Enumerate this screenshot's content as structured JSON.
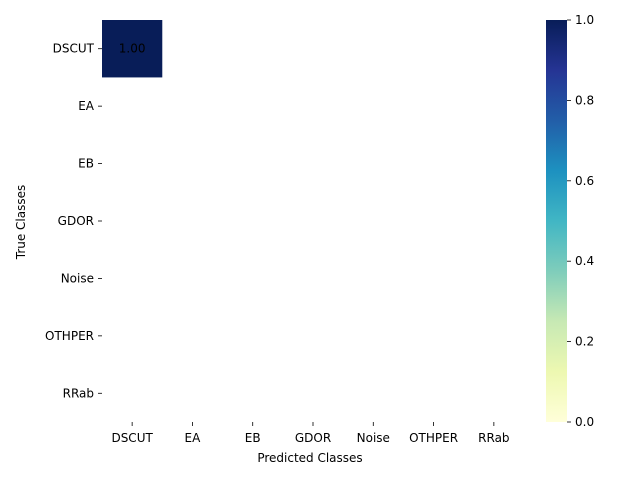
{
  "chart_data": {
    "type": "heatmap",
    "xlabel": "Predicted Classes",
    "ylabel": "True Classes",
    "x_categories": [
      "DSCUT",
      "EA",
      "EB",
      "GDOR",
      "Noise",
      "OTHPER",
      "RRab"
    ],
    "y_categories": [
      "DSCUT",
      "EA",
      "EB",
      "GDOR",
      "Noise",
      "OTHPER",
      "RRab"
    ],
    "cells": [
      {
        "row": "DSCUT",
        "col": "DSCUT",
        "value": 1.0,
        "label": "1.00"
      }
    ],
    "colorbar": {
      "range": [
        0.0,
        1.0
      ],
      "ticks": [
        "0.0",
        "0.2",
        "0.4",
        "0.6",
        "0.8",
        "1.0"
      ],
      "colormap": "YlGnBu",
      "stops": [
        "#ffffd9",
        "#edf8b1",
        "#c7e9b4",
        "#7fcdbb",
        "#41b6c4",
        "#1d91c0",
        "#225ea8",
        "#253494",
        "#081d58"
      ]
    }
  }
}
